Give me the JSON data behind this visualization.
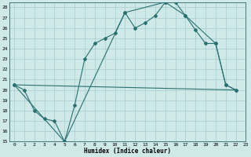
{
  "xlabel": "Humidex (Indice chaleur)",
  "bg_color": "#cfe8e8",
  "grid_color": "#a8cccc",
  "line_color": "#2a7070",
  "xlim": [
    -0.5,
    23
  ],
  "ylim": [
    15,
    28.5
  ],
  "xticks": [
    0,
    1,
    2,
    3,
    4,
    5,
    6,
    7,
    8,
    9,
    10,
    11,
    12,
    13,
    14,
    15,
    16,
    17,
    18,
    19,
    20,
    21,
    22,
    23
  ],
  "yticks": [
    15,
    16,
    17,
    18,
    19,
    20,
    21,
    22,
    23,
    24,
    25,
    26,
    27,
    28
  ],
  "line1_x": [
    0,
    1,
    2,
    3,
    4,
    5,
    6,
    7,
    8,
    9,
    10,
    11,
    12,
    13,
    14,
    15,
    16,
    17,
    18,
    19,
    20,
    21,
    22
  ],
  "line1_y": [
    20.5,
    20.0,
    18.0,
    17.2,
    17.0,
    15.0,
    18.5,
    23.0,
    24.5,
    25.0,
    25.5,
    27.5,
    26.0,
    26.5,
    27.2,
    28.5,
    28.5,
    27.2,
    25.8,
    24.5,
    24.5,
    20.5,
    20.0
  ],
  "line2_x": [
    0,
    22
  ],
  "line2_y": [
    20.5,
    20.0
  ],
  "line3_x": [
    0,
    5,
    11,
    15,
    17,
    20,
    21,
    22
  ],
  "line3_y": [
    20.5,
    15.0,
    27.5,
    28.5,
    27.2,
    24.5,
    20.5,
    20.0
  ]
}
